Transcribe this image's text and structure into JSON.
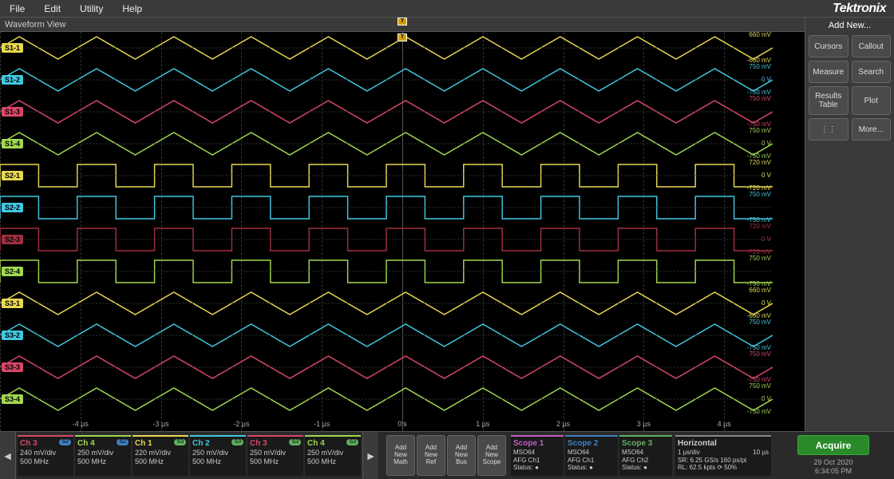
{
  "menubar": {
    "items": [
      "File",
      "Edit",
      "Utility",
      "Help"
    ],
    "brand": "Tektronix"
  },
  "waveform": {
    "title": "Waveform View",
    "trigger_marker": "T",
    "background": "#000000",
    "grid_color": "#333333",
    "time_axis": {
      "labels": [
        "-4 µs",
        "-3 µs",
        "-2 µs",
        "-1 µs",
        "0's",
        "1 µs",
        "2 µs",
        "3 µs",
        "4 µs"
      ],
      "positions_pct": [
        10,
        20,
        30,
        40,
        50,
        60,
        70,
        80,
        90
      ]
    },
    "colors": {
      "yellow": "#e8d850",
      "cyan": "#40c8e0",
      "magenta": "#d84868",
      "green": "#a0d850",
      "darkred": "#a03040"
    },
    "traces": [
      {
        "id": "S1-1",
        "color": "yellow",
        "shape": "triangle",
        "cycles": 10,
        "top": "660 mV",
        "mid": null,
        "bot": "-660 mV"
      },
      {
        "id": "S1-2",
        "color": "cyan",
        "shape": "triangle",
        "cycles": 10,
        "top": "750 mV",
        "mid": "0 V",
        "bot": "-750 mV"
      },
      {
        "id": "S1-3",
        "color": "magenta",
        "shape": "triangle",
        "cycles": 10,
        "top": "750 mV",
        "mid": null,
        "bot": "-750 mV"
      },
      {
        "id": "S1-4",
        "color": "green",
        "shape": "triangle",
        "cycles": 10,
        "top": "750 mV",
        "mid": "0 V",
        "bot": "-750 mV"
      },
      {
        "id": "S2-1",
        "color": "yellow",
        "shape": "square",
        "cycles": 10,
        "top": "720 mV",
        "mid": "0 V",
        "bot": "-720 mV"
      },
      {
        "id": "S2-2",
        "color": "cyan",
        "shape": "square",
        "cycles": 10,
        "top": "750 mV",
        "mid": null,
        "bot": "-750 mV"
      },
      {
        "id": "S2-3",
        "color": "darkred",
        "shape": "square",
        "cycles": 10,
        "top": "720 mV",
        "mid": "0 V",
        "bot": "-720 mV"
      },
      {
        "id": "S2-4",
        "color": "green",
        "shape": "square",
        "cycles": 10,
        "top": "750 mV",
        "mid": null,
        "bot": "-750 mV"
      },
      {
        "id": "S3-1",
        "color": "yellow",
        "shape": "triangle",
        "cycles": 10,
        "top": "660 mV",
        "mid": "0 V",
        "bot": "-660 mV"
      },
      {
        "id": "S3-2",
        "color": "cyan",
        "shape": "triangle",
        "cycles": 10,
        "top": "750 mV",
        "mid": null,
        "bot": "-750 mV"
      },
      {
        "id": "S3-3",
        "color": "magenta",
        "shape": "triangle",
        "cycles": 10,
        "top": "750 mV",
        "mid": null,
        "bot": "-750 mV"
      },
      {
        "id": "S3-4",
        "color": "green",
        "shape": "triangle",
        "cycles": 10,
        "top": "750 mV",
        "mid": "0 V",
        "bot": "-750 mV"
      }
    ]
  },
  "right_panel": {
    "title": "Add New...",
    "buttons": [
      "Cursors",
      "Callout",
      "Measure",
      "Search",
      "Results\nTable",
      "Plot",
      "⋮⋮",
      "More..."
    ]
  },
  "bottombar": {
    "channels": [
      {
        "name": "Ch 3",
        "badge": "S2",
        "badge_color": "#4080c0",
        "scale": "240 mV/div",
        "bw": "500 MHz",
        "color": "#d84868"
      },
      {
        "name": "Ch 4",
        "badge": "S2",
        "badge_color": "#4080c0",
        "scale": "250 mV/div",
        "bw": "500 MHz",
        "color": "#a0d850"
      },
      {
        "name": "Ch 1",
        "badge": "S3",
        "badge_color": "#60b060",
        "scale": "220 mV/div",
        "bw": "500 MHz",
        "color": "#e8d850"
      },
      {
        "name": "Ch 2",
        "badge": "S3",
        "badge_color": "#60b060",
        "scale": "250 mV/div",
        "bw": "500 MHz",
        "color": "#40c8e0"
      },
      {
        "name": "Ch 3",
        "badge": "S3",
        "badge_color": "#60b060",
        "scale": "250 mV/div",
        "bw": "500 MHz",
        "color": "#d84868"
      },
      {
        "name": "Ch 4",
        "badge": "S3",
        "badge_color": "#60b060",
        "scale": "250 mV/div",
        "bw": "500 MHz",
        "color": "#a0d850"
      }
    ],
    "add_buttons": [
      {
        "l1": "Add",
        "l2": "New",
        "l3": "Math"
      },
      {
        "l1": "Add",
        "l2": "New",
        "l3": "Ref"
      },
      {
        "l1": "Add",
        "l2": "New",
        "l3": "Bus"
      },
      {
        "l1": "Add",
        "l2": "New",
        "l3": "Scope"
      }
    ],
    "scopes": [
      {
        "name": "Scope 1",
        "model": "MSO64",
        "src": "AFG Ch1",
        "status": "Status: ●",
        "color": "#c060c0"
      },
      {
        "name": "Scope 2",
        "model": "MSO64",
        "src": "AFG Ch1",
        "status": "Status: ●",
        "color": "#4080c0"
      },
      {
        "name": "Scope 3",
        "model": "MSO64",
        "src": "AFG Ch2",
        "status": "Status: ●",
        "color": "#60b060"
      }
    ],
    "horizontal": {
      "name": "Horizontal",
      "l1a": "1 µs/div",
      "l1b": "10 µs",
      "l2": "SR: 6.25 GS/s   160 ps/pt",
      "l3": "RL: 62.5 kpts   ⟳ 50%"
    },
    "acquire": "Acquire",
    "date": "29 Oct 2020",
    "time": "6:34:05 PM"
  }
}
